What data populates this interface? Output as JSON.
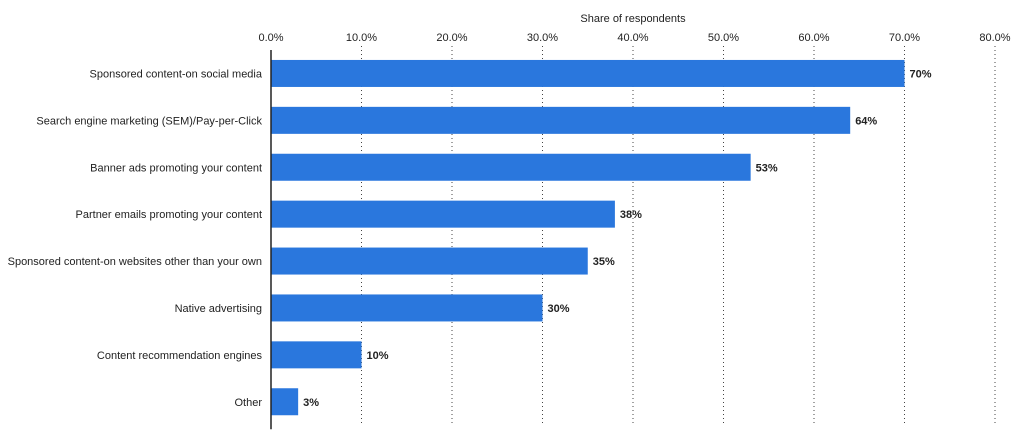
{
  "chart_data": {
    "type": "bar",
    "orientation": "horizontal",
    "xlabel": "Share of respondents",
    "xlabel_position": "top",
    "xlim": [
      0,
      80
    ],
    "x_ticks": [
      "0.0%",
      "10.0%",
      "20.0%",
      "30.0%",
      "40.0%",
      "50.0%",
      "60.0%",
      "70.0%",
      "80.0%"
    ],
    "grid": true,
    "bar_color": "#2a77dd",
    "categories": [
      "Sponsored content-on social media",
      "Search engine marketing (SEM)/Pay-per-Click",
      "Banner ads promoting your content",
      "Partner emails promoting your content",
      "Sponsored content-on websites other than your own",
      "Native advertising",
      "Content recommendation engines",
      "Other"
    ],
    "values": [
      70,
      64,
      53,
      38,
      35,
      30,
      10,
      3
    ],
    "value_labels": [
      "70%",
      "64%",
      "53%",
      "38%",
      "35%",
      "30%",
      "10%",
      "3%"
    ]
  }
}
